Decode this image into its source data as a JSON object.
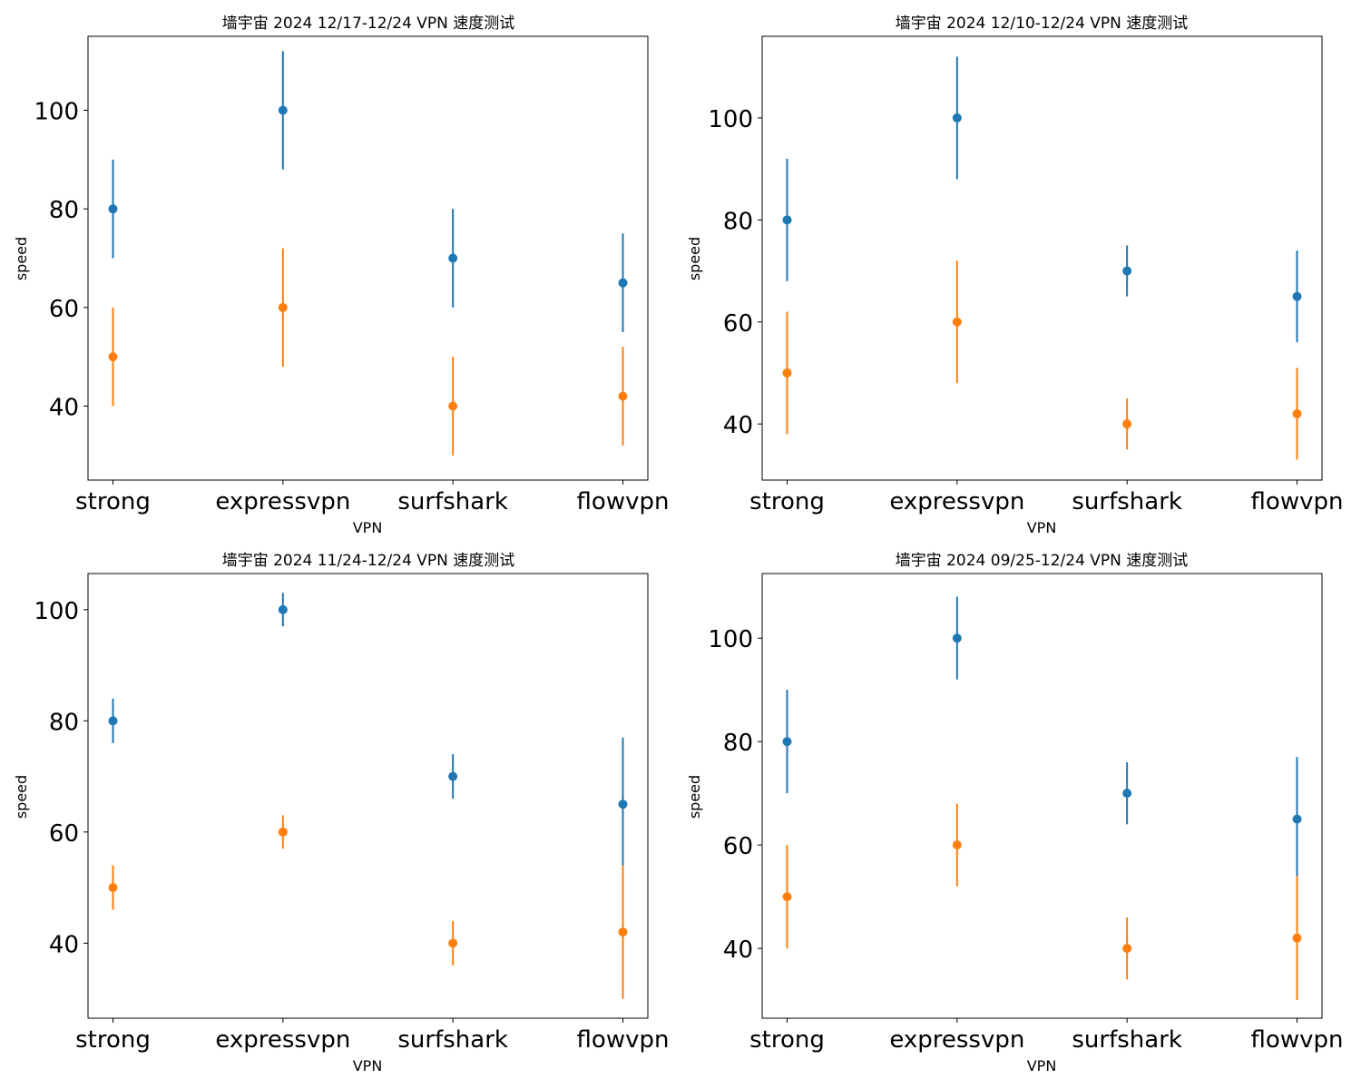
{
  "chart_data": [
    {
      "type": "scatter",
      "title": "墙宇宙 2024 12/17-12/24 VPN 速度测试",
      "xlabel": "VPN",
      "ylabel": "speed",
      "categories": [
        "strong",
        "expressvpn",
        "surfshark",
        "flowvpn"
      ],
      "ylim": [
        25,
        115
      ],
      "yticks": [
        40,
        60,
        80,
        100
      ],
      "grid": false,
      "series": [
        {
          "color": "#1f77b4",
          "values": [
            80,
            100,
            70,
            65
          ],
          "err": [
            10,
            12,
            10,
            10
          ]
        },
        {
          "color": "#ff7f0e",
          "values": [
            50,
            60,
            40,
            42
          ],
          "err": [
            10,
            12,
            10,
            10
          ]
        }
      ]
    },
    {
      "type": "scatter",
      "title": "墙宇宙 2024 12/10-12/24 VPN 速度测试",
      "xlabel": "VPN",
      "ylabel": "speed",
      "categories": [
        "strong",
        "expressvpn",
        "surfshark",
        "flowvpn"
      ],
      "ylim": [
        29,
        116
      ],
      "yticks": [
        40,
        60,
        80,
        100
      ],
      "grid": false,
      "series": [
        {
          "color": "#1f77b4",
          "values": [
            80,
            100,
            70,
            65
          ],
          "err": [
            12,
            12,
            5,
            9
          ]
        },
        {
          "color": "#ff7f0e",
          "values": [
            50,
            60,
            40,
            42
          ],
          "err": [
            12,
            12,
            5,
            9
          ]
        }
      ]
    },
    {
      "type": "scatter",
      "title": "墙宇宙 2024 11/24-12/24 VPN 速度测试",
      "xlabel": "VPN",
      "ylabel": "speed",
      "categories": [
        "strong",
        "expressvpn",
        "surfshark",
        "flowvpn"
      ],
      "ylim": [
        26.5,
        106.5
      ],
      "yticks": [
        40,
        60,
        80,
        100
      ],
      "grid": false,
      "series": [
        {
          "color": "#1f77b4",
          "values": [
            80,
            100,
            70,
            65
          ],
          "err": [
            4,
            3,
            4,
            12
          ]
        },
        {
          "color": "#ff7f0e",
          "values": [
            50,
            60,
            40,
            42
          ],
          "err": [
            4,
            3,
            4,
            12
          ]
        }
      ]
    },
    {
      "type": "scatter",
      "title": "墙宇宙 2024 09/25-12/24 VPN 速度测试",
      "xlabel": "VPN",
      "ylabel": "speed",
      "categories": [
        "strong",
        "expressvpn",
        "surfshark",
        "flowvpn"
      ],
      "ylim": [
        26.5,
        112.5
      ],
      "yticks": [
        40,
        60,
        80,
        100
      ],
      "grid": false,
      "series": [
        {
          "color": "#1f77b4",
          "values": [
            80,
            100,
            70,
            65
          ],
          "err": [
            10,
            8,
            6,
            12
          ]
        },
        {
          "color": "#ff7f0e",
          "values": [
            50,
            60,
            40,
            42
          ],
          "err": [
            10,
            8,
            6,
            12
          ]
        }
      ]
    }
  ]
}
